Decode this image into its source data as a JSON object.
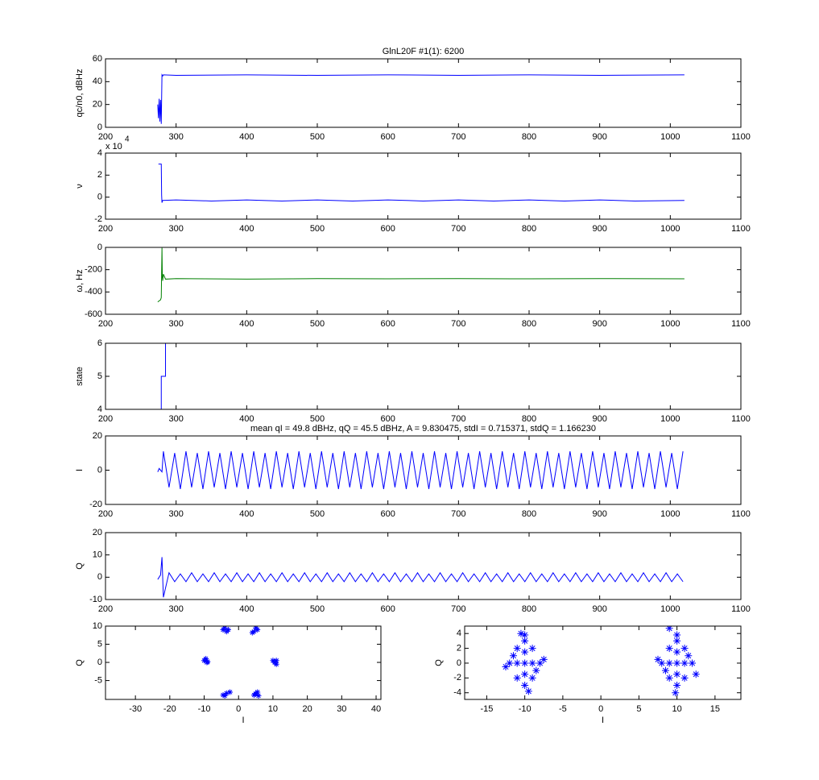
{
  "chart_data": [
    {
      "type": "line",
      "title": "GlnL20F #1(1): 6200",
      "ylabel": "qc/n0, dBHz",
      "color": "#0000ff",
      "x": [
        274,
        275,
        276,
        277,
        278,
        279,
        280,
        281,
        282,
        300,
        400,
        500,
        600,
        700,
        800,
        900,
        1020
      ],
      "values": [
        20,
        8,
        25,
        5,
        24,
        3,
        46,
        45,
        46,
        45.5,
        46,
        45.5,
        46,
        45.5,
        46,
        45.5,
        46
      ],
      "xlim": [
        200,
        1100
      ],
      "xticks": [
        200,
        300,
        400,
        500,
        600,
        700,
        800,
        900,
        1000,
        1100
      ],
      "ylim": [
        0,
        60
      ],
      "yticks": [
        0,
        20,
        40,
        60
      ]
    },
    {
      "type": "line",
      "ylabel": "ν",
      "multiplier": "x 10",
      "multiplier_exp": "4",
      "color": "#0000ff",
      "x": [
        275,
        279,
        279.5,
        280,
        281,
        300,
        350,
        400,
        450,
        500,
        550,
        600,
        650,
        700,
        750,
        800,
        850,
        900,
        950,
        1020
      ],
      "values": [
        3,
        3,
        0.2,
        -0.5,
        -0.3,
        -0.25,
        -0.35,
        -0.25,
        -0.35,
        -0.25,
        -0.35,
        -0.25,
        -0.35,
        -0.25,
        -0.35,
        -0.25,
        -0.35,
        -0.25,
        -0.35,
        -0.3
      ],
      "xlim": [
        200,
        1100
      ],
      "xticks": [
        200,
        300,
        400,
        500,
        600,
        700,
        800,
        900,
        1000,
        1100
      ],
      "ylim": [
        -2,
        4
      ],
      "yticks": [
        -2,
        0,
        2,
        4
      ]
    },
    {
      "type": "line",
      "ylabel": "ω, Hz",
      "color": "#008000",
      "x": [
        274,
        276,
        278,
        279,
        280,
        280.5,
        281,
        282,
        285,
        300,
        400,
        500,
        600,
        700,
        800,
        900,
        1020
      ],
      "values": [
        -490,
        -480,
        -470,
        -450,
        -5,
        -260,
        -300,
        -240,
        -285,
        -280,
        -285,
        -280,
        -282,
        -280,
        -282,
        -280,
        -282
      ],
      "xlim": [
        200,
        1100
      ],
      "xticks": [
        200,
        300,
        400,
        500,
        600,
        700,
        800,
        900,
        1000,
        1100
      ],
      "ylim": [
        -600,
        0
      ],
      "yticks": [
        -600,
        -400,
        -200,
        0
      ]
    },
    {
      "type": "line",
      "ylabel": "state",
      "color": "#0000ff",
      "x": [
        275,
        279,
        279,
        285,
        285,
        1020
      ],
      "values": [
        4,
        4,
        5,
        5,
        6,
        6
      ],
      "xlim": [
        200,
        1100
      ],
      "xticks": [
        200,
        300,
        400,
        500,
        600,
        700,
        800,
        900,
        1000,
        1100
      ],
      "ylim": [
        4,
        6
      ],
      "yticks": [
        4,
        5,
        6
      ]
    },
    {
      "type": "line",
      "title": "mean qI = 49.8 dBHz, qQ = 45.5 dBHz, A = 9.830475, stdI = 0.715371, stdQ = 1.166230",
      "ylabel": "I",
      "color": "#0000ff",
      "x": [
        274,
        276,
        278,
        280,
        282,
        290,
        298,
        306,
        314,
        322,
        330,
        338,
        346,
        354,
        362,
        370,
        378,
        386,
        394,
        402,
        410,
        418,
        426,
        434,
        442,
        450,
        458,
        466,
        474,
        482,
        490,
        498,
        506,
        514,
        522,
        530,
        538,
        546,
        554,
        562,
        570,
        578,
        586,
        594,
        602,
        610,
        618,
        626,
        634,
        642,
        650,
        658,
        666,
        674,
        682,
        690,
        698,
        706,
        714,
        722,
        730,
        738,
        746,
        754,
        762,
        770,
        778,
        786,
        794,
        802,
        810,
        818,
        826,
        834,
        842,
        850,
        858,
        866,
        874,
        882,
        890,
        898,
        906,
        914,
        922,
        930,
        938,
        946,
        954,
        962,
        970,
        978,
        986,
        994,
        1002,
        1010,
        1018
      ],
      "values": [
        -1,
        1,
        0,
        -1,
        11,
        -10,
        10,
        -11,
        11,
        -10,
        10,
        -11,
        11,
        -10,
        10,
        -11,
        11,
        -10,
        10,
        -11,
        11,
        -10,
        10,
        -11,
        11,
        -10,
        10,
        -11,
        11,
        -10,
        10,
        -11,
        11,
        -10,
        10,
        -11,
        11,
        -10,
        10,
        -11,
        11,
        -10,
        10,
        -11,
        11,
        -10,
        10,
        -11,
        11,
        -10,
        10,
        -11,
        11,
        -10,
        10,
        -11,
        11,
        -10,
        10,
        -11,
        11,
        -10,
        10,
        -11,
        11,
        -10,
        10,
        -11,
        11,
        -10,
        10,
        -11,
        11,
        -10,
        10,
        -11,
        11,
        -10,
        10,
        -11,
        11,
        -10,
        10,
        -11,
        11,
        -10,
        10,
        -11,
        11,
        -10,
        10,
        -11,
        11,
        -10,
        10,
        -11,
        11
      ],
      "xlim": [
        200,
        1100
      ],
      "xticks": [
        200,
        300,
        400,
        500,
        600,
        700,
        800,
        900,
        1000,
        1100
      ],
      "ylim": [
        -20,
        20
      ],
      "yticks": [
        -20,
        0,
        20
      ]
    },
    {
      "type": "line",
      "ylabel": "Q",
      "color": "#0000ff",
      "x": [
        274,
        276,
        278,
        280,
        282,
        290,
        298,
        306,
        314,
        322,
        330,
        338,
        346,
        354,
        362,
        370,
        378,
        386,
        394,
        402,
        410,
        418,
        426,
        434,
        442,
        450,
        458,
        466,
        474,
        482,
        490,
        498,
        506,
        514,
        522,
        530,
        538,
        546,
        554,
        562,
        570,
        578,
        586,
        594,
        602,
        610,
        618,
        626,
        634,
        642,
        650,
        658,
        666,
        674,
        682,
        690,
        698,
        706,
        714,
        722,
        730,
        738,
        746,
        754,
        762,
        770,
        778,
        786,
        794,
        802,
        810,
        818,
        826,
        834,
        842,
        850,
        858,
        866,
        874,
        882,
        890,
        898,
        906,
        914,
        922,
        930,
        938,
        946,
        954,
        962,
        970,
        978,
        986,
        994,
        1002,
        1010,
        1018
      ],
      "values": [
        -1,
        0,
        1,
        9,
        -9,
        2,
        -2,
        1.5,
        -2,
        2,
        -2,
        1.5,
        -2,
        2,
        -2,
        1.5,
        -2,
        2,
        -2,
        1.5,
        -2,
        2,
        -2,
        1.5,
        -2,
        2,
        -2,
        1.5,
        -2,
        2,
        -2,
        1.5,
        -2,
        2,
        -2,
        1.5,
        -2,
        2,
        -2,
        1.5,
        -2,
        2,
        -2,
        1.5,
        -2,
        2,
        -2,
        1.5,
        -2,
        2,
        -2,
        1.5,
        -2,
        2,
        -2,
        1.5,
        -2,
        2,
        -2,
        1.5,
        -2,
        2,
        -2,
        1.5,
        -2,
        2,
        -2,
        1.5,
        -2,
        2,
        -2,
        1.5,
        -2,
        2,
        -2,
        1.5,
        -2,
        2,
        -2,
        1.5,
        -2,
        2,
        -2,
        1.5,
        -2,
        2,
        -2,
        1.5,
        -2,
        2,
        -2,
        1.5,
        -2,
        2,
        -2,
        1.5,
        -2
      ],
      "xlim": [
        200,
        1100
      ],
      "xticks": [
        200,
        300,
        400,
        500,
        600,
        700,
        800,
        900,
        1000,
        1100
      ],
      "ylim": [
        -10,
        20
      ],
      "yticks": [
        -10,
        0,
        10,
        20
      ]
    },
    {
      "type": "scatter",
      "xlabel": "I",
      "ylabel": "Q",
      "color": "#0000ff",
      "x": [
        -4.5,
        -3.5,
        -4,
        -3,
        4.5,
        5.5,
        5,
        4,
        -10,
        -9,
        -9.5,
        -9.2,
        10,
        11,
        10.5,
        11,
        -4.5,
        -3.5,
        -4,
        -2.5,
        4.5,
        5.5,
        5,
        5.8
      ],
      "values": [
        9,
        8.5,
        9.5,
        9,
        8.5,
        9,
        9.5,
        8.2,
        0.5,
        0.2,
        1,
        0,
        0.5,
        -0.5,
        0,
        0.5,
        -9,
        -8.5,
        -9.2,
        -8.2,
        -9,
        -8.2,
        -8.6,
        -9.2
      ],
      "xlim": [
        -38.7,
        41.4
      ],
      "xticks": [
        -30,
        -20,
        -10,
        0,
        10,
        20,
        30,
        40
      ],
      "ylim": [
        -10.2,
        10
      ],
      "yticks": [
        -5,
        0,
        5,
        10
      ]
    },
    {
      "type": "scatter",
      "xlabel": "I",
      "ylabel": "Q",
      "color": "#0000ff",
      "x": [
        -12,
        -11,
        -11,
        -10,
        -10,
        -9,
        -9,
        -8,
        -10,
        -11,
        -9,
        -10,
        -10,
        -10.5,
        -9.5,
        -12.5,
        -7.5,
        -11.5,
        -8.5,
        -10,
        12,
        11,
        11,
        10,
        10,
        9,
        9,
        8,
        10,
        11,
        9,
        10,
        10,
        9,
        9.8,
        12.5,
        7.5,
        11.5,
        8.5,
        10
      ],
      "values": [
        0,
        2,
        -2,
        3,
        -3,
        2,
        -2,
        0,
        0,
        0,
        0,
        1.5,
        -1.5,
        4,
        -3.8,
        -0.5,
        0.5,
        1,
        -1,
        3.8,
        0,
        2,
        -2,
        3,
        -3,
        2,
        -2,
        0,
        0,
        0,
        0,
        1.5,
        -1.5,
        4.7,
        -4,
        -1.5,
        0.5,
        1,
        -1,
        3.8
      ],
      "xlim": [
        -17.9,
        18.4
      ],
      "xticks": [
        -15,
        -10,
        -5,
        0,
        5,
        10,
        15
      ],
      "ylim": [
        -4.9,
        5
      ],
      "yticks": [
        -4,
        -2,
        0,
        2,
        4
      ]
    }
  ]
}
